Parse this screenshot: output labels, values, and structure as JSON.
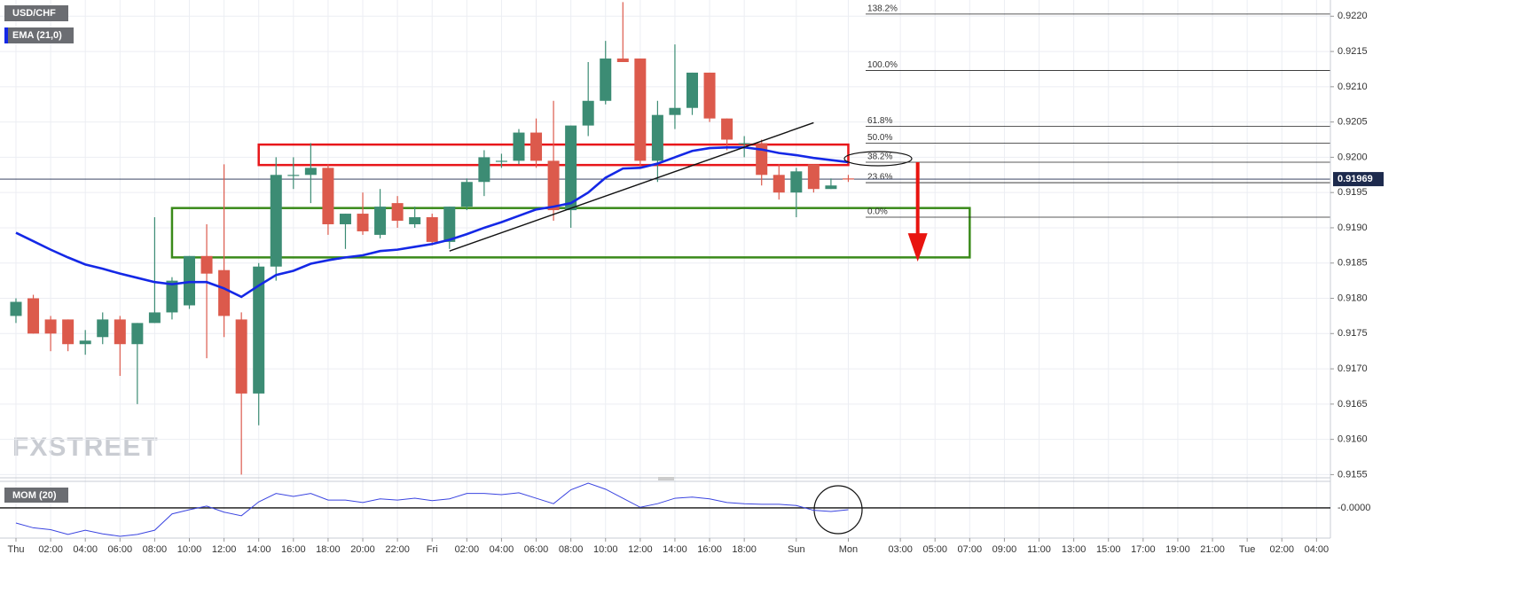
{
  "chart_data": {
    "type": "candlestick",
    "title": "USD/CHF",
    "watermark": "FXSTREET",
    "grid": true,
    "up_color": "#3c8c74",
    "down_color": "#dc5a4c",
    "xlim": [
      -0.92,
      75.8
    ],
    "xticks": [
      {
        "value": 0,
        "label": "Thu"
      },
      {
        "value": 2,
        "label": "02:00"
      },
      {
        "value": 4,
        "label": "04:00"
      },
      {
        "value": 6,
        "label": "06:00"
      },
      {
        "value": 8,
        "label": "08:00"
      },
      {
        "value": 10,
        "label": "10:00"
      },
      {
        "value": 12,
        "label": "12:00"
      },
      {
        "value": 14,
        "label": "14:00"
      },
      {
        "value": 16,
        "label": "16:00"
      },
      {
        "value": 18,
        "label": "18:00"
      },
      {
        "value": 20,
        "label": "20:00"
      },
      {
        "value": 22,
        "label": "22:00"
      },
      {
        "value": 24,
        "label": "Fri"
      },
      {
        "value": 26,
        "label": "02:00"
      },
      {
        "value": 28,
        "label": "04:00"
      },
      {
        "value": 30,
        "label": "06:00"
      },
      {
        "value": 32,
        "label": "08:00"
      },
      {
        "value": 34,
        "label": "10:00"
      },
      {
        "value": 36,
        "label": "12:00"
      },
      {
        "value": 38,
        "label": "14:00"
      },
      {
        "value": 40,
        "label": "16:00"
      },
      {
        "value": 42,
        "label": "18:00"
      },
      {
        "value": 45,
        "label": "Sun"
      },
      {
        "value": 48,
        "label": "Mon"
      },
      {
        "value": 51,
        "label": "03:00"
      },
      {
        "value": 53,
        "label": "05:00"
      },
      {
        "value": 55,
        "label": "07:00"
      },
      {
        "value": 57,
        "label": "09:00"
      },
      {
        "value": 59,
        "label": "11:00"
      },
      {
        "value": 61,
        "label": "13:00"
      },
      {
        "value": 63,
        "label": "15:00"
      },
      {
        "value": 65,
        "label": "17:00"
      },
      {
        "value": 67,
        "label": "19:00"
      },
      {
        "value": 69,
        "label": "21:00"
      },
      {
        "value": 71,
        "label": "Tue"
      },
      {
        "value": 73,
        "label": "02:00"
      },
      {
        "value": 75,
        "label": "04:00"
      }
    ],
    "ylim": [
      0.91548,
      0.92223
    ],
    "yticks": [
      {
        "value": 0.9155,
        "label": "0.9155"
      },
      {
        "value": 0.916,
        "label": "0.9160"
      },
      {
        "value": 0.9165,
        "label": "0.9165"
      },
      {
        "value": 0.917,
        "label": "0.9170"
      },
      {
        "value": 0.9175,
        "label": "0.9175"
      },
      {
        "value": 0.918,
        "label": "0.9180"
      },
      {
        "value": 0.9185,
        "label": "0.9185"
      },
      {
        "value": 0.919,
        "label": "0.9190"
      },
      {
        "value": 0.9195,
        "label": "0.9195"
      },
      {
        "value": 0.92,
        "label": "0.9200"
      },
      {
        "value": 0.9205,
        "label": "0.9205"
      },
      {
        "value": 0.921,
        "label": "0.9210"
      },
      {
        "value": 0.9215,
        "label": "0.9215"
      },
      {
        "value": 0.922,
        "label": "0.9220"
      }
    ],
    "open": [
      0.91775,
      0.918,
      0.9177,
      0.9177,
      0.91735,
      0.91745,
      0.9177,
      0.91735,
      0.91765,
      0.9178,
      0.9179,
      0.9186,
      0.9184,
      0.9177,
      0.91665,
      0.91845,
      0.91975,
      0.91975,
      0.91985,
      0.91905,
      0.9192,
      0.9189,
      0.91935,
      0.91905,
      0.91915,
      0.9188,
      0.9193,
      0.91965,
      0.91995,
      0.91995,
      0.92035,
      0.91995,
      0.91925,
      0.92045,
      0.9208,
      0.9214,
      0.9214,
      0.91995,
      0.9206,
      0.9207,
      0.9212,
      0.92055,
      0.9202,
      0.9202,
      0.91975,
      0.9195,
      0.9199,
      0.91955,
      0.9197
    ],
    "high": [
      0.918,
      0.91805,
      0.91775,
      0.9177,
      0.91755,
      0.9178,
      0.91775,
      0.91765,
      0.91915,
      0.9183,
      0.9186,
      0.91905,
      0.9199,
      0.9178,
      0.9185,
      0.92,
      0.92,
      0.9202,
      0.9199,
      0.9192,
      0.9195,
      0.91955,
      0.91945,
      0.9193,
      0.9192,
      0.9193,
      0.9197,
      0.9201,
      0.92005,
      0.9204,
      0.92055,
      0.9208,
      0.92045,
      0.92135,
      0.92165,
      0.9222,
      0.9214,
      0.9208,
      0.9216,
      0.9212,
      0.9212,
      0.92055,
      0.9203,
      0.92025,
      0.9199,
      0.91985,
      0.9199,
      0.9197,
      0.91975
    ],
    "low": [
      0.91765,
      0.9175,
      0.91725,
      0.91725,
      0.9172,
      0.91735,
      0.9169,
      0.9165,
      0.91765,
      0.9177,
      0.91785,
      0.91715,
      0.91745,
      0.9155,
      0.9162,
      0.91825,
      0.91955,
      0.91935,
      0.9189,
      0.9187,
      0.9189,
      0.91885,
      0.919,
      0.919,
      0.91875,
      0.9187,
      0.91925,
      0.91945,
      0.91985,
      0.9199,
      0.91985,
      0.9191,
      0.919,
      0.9203,
      0.92075,
      0.92135,
      0.91985,
      0.91965,
      0.9204,
      0.9206,
      0.9205,
      0.9201,
      0.92,
      0.9196,
      0.9194,
      0.91915,
      0.9195,
      0.91955,
      0.91965
    ],
    "close": [
      0.91795,
      0.9175,
      0.9175,
      0.91735,
      0.9174,
      0.9177,
      0.91735,
      0.91765,
      0.9178,
      0.91825,
      0.9186,
      0.91835,
      0.91775,
      0.91665,
      0.91845,
      0.91975,
      0.91975,
      0.91985,
      0.91905,
      0.9192,
      0.91895,
      0.9193,
      0.9191,
      0.91915,
      0.9188,
      0.9193,
      0.91965,
      0.92,
      0.91995,
      0.92035,
      0.91995,
      0.91925,
      0.92045,
      0.9208,
      0.9214,
      0.92135,
      0.91995,
      0.9206,
      0.9207,
      0.9212,
      0.92055,
      0.92025,
      0.9202,
      0.91975,
      0.9195,
      0.9198,
      0.91955,
      0.9196,
      0.91969
    ],
    "last_price": 0.91969,
    "series": [
      {
        "name": "EMA (21,0)",
        "color": "#1428e6",
        "values": [
          0.91893,
          0.91881,
          0.91869,
          0.91858,
          0.91848,
          0.91842,
          0.91835,
          0.91829,
          0.91823,
          0.9182,
          0.91823,
          0.91823,
          0.91814,
          0.91802,
          0.91818,
          0.91833,
          0.91839,
          0.91849,
          0.91854,
          0.91858,
          0.91861,
          0.91867,
          0.91869,
          0.91873,
          0.91877,
          0.91883,
          0.91891,
          0.919,
          0.91908,
          0.91917,
          0.91926,
          0.9193,
          0.91935,
          0.9195,
          0.91971,
          0.91984,
          0.91985,
          0.91991,
          0.92,
          0.92009,
          0.92013,
          0.92014,
          0.92014,
          0.92011,
          0.92006,
          0.92003,
          0.91999,
          0.91996,
          0.91993
        ]
      }
    ],
    "fib_levels": [
      {
        "label": "138.2%",
        "value": 0.92203
      },
      {
        "label": "100.0%",
        "value": 0.92123
      },
      {
        "label": "61.8%",
        "value": 0.92044
      },
      {
        "label": "50.0%",
        "value": 0.9202
      },
      {
        "label": "38.2%",
        "value": 0.91993
      },
      {
        "label": "23.6%",
        "value": 0.91964
      },
      {
        "label": "0.0%",
        "value": 0.91915
      }
    ],
    "fib_x": [
      49,
      75.8
    ],
    "zones": [
      {
        "color": "#e8161a",
        "x": [
          14,
          48
        ],
        "y": [
          0.92018,
          0.91989
        ]
      },
      {
        "color": "#3a8a1a",
        "x": [
          9,
          55
        ],
        "y": [
          0.91928,
          0.91858
        ]
      }
    ],
    "trendline": {
      "color": "#111111",
      "x": [
        25,
        46
      ],
      "y": [
        0.91867,
        0.92049
      ]
    },
    "arrow": {
      "color": "#e8140f",
      "x": 52,
      "y": [
        0.91993,
        0.91852
      ]
    },
    "indicator": {
      "name": "MOM (20)",
      "color": "#3a44e0",
      "ylim": [
        -0.005,
        0.0044
      ],
      "yticks": [
        {
          "value": 0,
          "label": "-0.0000"
        }
      ],
      "values": [
        -0.0025,
        -0.0033,
        -0.0036,
        -0.0044,
        -0.0037,
        -0.0043,
        -0.0047,
        -0.0044,
        -0.0037,
        -0.001,
        -0.0003,
        0.0003,
        -0.0007,
        -0.0013,
        0.001,
        0.0024,
        0.0019,
        0.0024,
        0.0013,
        0.0013,
        0.0009,
        0.0015,
        0.0013,
        0.0016,
        0.0012,
        0.0015,
        0.0024,
        0.0024,
        0.0022,
        0.0025,
        0.0016,
        0.0007,
        0.003,
        0.0041,
        0.0031,
        0.0016,
        0.0001,
        0.0007,
        0.0016,
        0.0018,
        0.0015,
        0.0009,
        0.0007,
        0.0006,
        0.0006,
        0.0004,
        -0.0004,
        -0.0006,
        -0.0003
      ]
    }
  }
}
